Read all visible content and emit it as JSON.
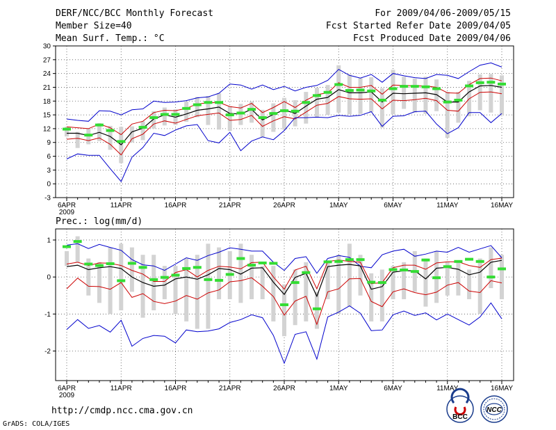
{
  "header": {
    "title": "DERF/NCC/BCC Monthly Forecast",
    "member_size": "Member Size=40",
    "variable": "Mean Surf. Temp.: °C",
    "period": "For 2009/04/06-2009/05/15",
    "started": "Fcst Started Refer Date 2009/04/05",
    "produced": "Fcst Produced Date 2009/04/06"
  },
  "footer": {
    "url": "http://cmdp.ncc.cma.gov.cn",
    "grads": "GrADS: COLA/IGES",
    "logo_bcc": "BCC",
    "logo_ncc": "NCC"
  },
  "colors": {
    "max_min": "#0000cc",
    "spread": "#cc0000",
    "mean": "#000000",
    "bars": "#d3d3d3",
    "obs": "#33dd33"
  },
  "chart_data": [
    {
      "type": "line",
      "title": "Mean Surf. Temp.: °C",
      "x_tick_labels": [
        "6APR",
        "11APR",
        "16APR",
        "21APR",
        "26APR",
        "1MAY",
        "6MAY",
        "11MAY",
        "16MAY"
      ],
      "x_tick_days": [
        0,
        5,
        10,
        15,
        20,
        25,
        30,
        35,
        40
      ],
      "year_label": "2009",
      "ylim": [
        -3,
        30
      ],
      "y_ticks": [
        -3,
        0,
        3,
        6,
        9,
        12,
        15,
        18,
        21,
        24,
        27,
        30
      ],
      "grid": true,
      "days": 40,
      "series": [
        {
          "name": "max",
          "values": [
            14.1,
            13.8,
            13.6,
            15.9,
            15.8,
            15.0,
            16.1,
            16.3,
            18.0,
            17.7,
            17.8,
            18.1,
            18.7,
            18.9,
            19.7,
            21.7,
            21.5,
            20.6,
            21.5,
            20.5,
            21.2,
            20.2,
            21.0,
            21.4,
            22.5,
            24.9,
            23.6,
            23.0,
            23.8,
            22.1,
            24.0,
            23.5,
            23.1,
            22.9,
            23.8,
            23.6,
            22.9,
            24.4,
            25.8,
            26.3,
            25.4
          ]
        },
        {
          "name": "upper",
          "values": [
            12.4,
            12.2,
            12.0,
            13.0,
            12.2,
            10.7,
            13.0,
            13.6,
            15.5,
            16.0,
            15.9,
            16.4,
            17.4,
            17.6,
            17.7,
            16.8,
            16.5,
            17.5,
            15.5,
            16.6,
            17.9,
            16.6,
            18.2,
            19.4,
            19.8,
            22.0,
            21.0,
            21.0,
            21.4,
            19.5,
            21.5,
            21.4,
            21.3,
            21.3,
            21.0,
            19.8,
            19.7,
            21.6,
            22.9,
            23.0,
            22.4
          ]
        },
        {
          "name": "mean",
          "values": [
            11.0,
            11.0,
            10.5,
            11.2,
            10.3,
            8.5,
            11.3,
            12.1,
            14.1,
            15.0,
            14.5,
            15.2,
            16.0,
            16.3,
            16.7,
            15.3,
            15.2,
            16.2,
            13.9,
            15.1,
            16.1,
            15.3,
            16.9,
            18.4,
            18.8,
            20.5,
            19.8,
            19.8,
            20.0,
            17.8,
            19.7,
            19.6,
            19.7,
            19.8,
            19.4,
            17.8,
            17.8,
            20.0,
            21.3,
            21.4,
            21.0
          ]
        },
        {
          "name": "lower",
          "values": [
            9.7,
            9.9,
            9.4,
            10.0,
            8.6,
            6.3,
            9.8,
            10.8,
            13.0,
            13.7,
            13.2,
            14.0,
            14.8,
            15.1,
            15.4,
            13.8,
            14.0,
            14.9,
            12.5,
            13.7,
            14.6,
            14.1,
            15.6,
            17.1,
            17.5,
            19.0,
            18.5,
            18.4,
            18.5,
            16.3,
            18.2,
            18.1,
            18.3,
            18.6,
            18.1,
            16.0,
            15.8,
            18.5,
            19.9,
            20.0,
            19.6
          ]
        },
        {
          "name": "min",
          "values": [
            5.4,
            6.5,
            6.2,
            6.2,
            3.3,
            0.5,
            5.8,
            7.9,
            11.0,
            10.5,
            11.7,
            12.6,
            12.9,
            9.4,
            8.9,
            11.2,
            7.2,
            9.3,
            10.2,
            9.6,
            11.6,
            14.4,
            14.4,
            14.5,
            14.4,
            14.9,
            14.7,
            14.9,
            15.7,
            12.5,
            14.7,
            14.8,
            15.7,
            15.8,
            13.0,
            10.9,
            12.2,
            15.5,
            15.5,
            13.3,
            15.3
          ]
        }
      ],
      "bars": {
        "low": [
          10.3,
          7.8,
          8.6,
          9.3,
          7.4,
          4.5,
          9.0,
          9.5,
          12.0,
          12.7,
          12.8,
          13.5,
          14.5,
          12.8,
          11.8,
          11.5,
          12.8,
          13.3,
          10.2,
          11.3,
          11.8,
          12.5,
          13.1,
          14.4,
          15.0,
          15.5,
          15.1,
          15.2,
          15.6,
          12.2,
          15.1,
          16.3,
          15.5,
          15.2,
          15.8,
          10.0,
          13.3,
          14.7,
          16.0,
          15.5,
          15.0
        ],
        "high": [
          12.4,
          11.3,
          12.0,
          13.2,
          12.6,
          12.4,
          12.5,
          13.6,
          15.8,
          16.6,
          16.2,
          17.9,
          18.9,
          19.1,
          19.7,
          16.9,
          17.4,
          17.9,
          16.1,
          17.5,
          18.7,
          18.2,
          20.0,
          20.9,
          21.5,
          25.8,
          23.8,
          23.0,
          23.2,
          20.8,
          24.8,
          23.3,
          22.9,
          23.3,
          22.7,
          20.0,
          20.0,
          22.4,
          23.8,
          23.9,
          23.6
        ]
      },
      "observed": [
        11.9,
        null,
        10.6,
        12.8,
        11.6,
        9.2,
        null,
        12.3,
        14.4,
        15.1,
        15.1,
        16.4,
        17.2,
        17.7,
        17.7,
        15.0,
        15.4,
        16.2,
        14.4,
        15.3,
        15.9,
        15.8,
        17.7,
        19.2,
        19.9,
        21.6,
        20.3,
        20.4,
        20.2,
        18.2,
        20.7,
        21.2,
        21.2,
        21.1,
        20.7,
        17.8,
        18.2,
        21.3,
        22.0,
        22.1,
        21.7
      ]
    },
    {
      "type": "line",
      "title": "Prec.: log(mm/d)",
      "x_tick_labels": [
        "6APR",
        "11APR",
        "16APR",
        "21APR",
        "26APR",
        "1MAY",
        "6MAY",
        "11MAY",
        "16MAY"
      ],
      "x_tick_days": [
        0,
        5,
        10,
        15,
        20,
        25,
        30,
        35,
        40
      ],
      "year_label": "2009",
      "ylim": [
        -2.8,
        1.3
      ],
      "y_ticks": [
        -2,
        -1,
        0,
        1
      ],
      "grid": true,
      "days": 40,
      "series": [
        {
          "name": "max",
          "values": [
            0.86,
            0.9,
            0.77,
            0.88,
            0.8,
            0.72,
            0.47,
            0.33,
            0.3,
            0.18,
            0.35,
            0.52,
            0.45,
            0.58,
            0.67,
            0.79,
            0.75,
            0.7,
            0.7,
            0.4,
            0.18,
            0.5,
            0.55,
            0.1,
            0.5,
            0.58,
            0.53,
            0.29,
            0.25,
            0.6,
            0.7,
            0.75,
            0.56,
            0.62,
            0.7,
            0.67,
            0.8,
            0.67,
            0.76,
            0.85,
            0.52
          ]
        },
        {
          "name": "upper",
          "values": [
            0.35,
            0.4,
            0.31,
            0.38,
            0.37,
            0.31,
            0.18,
            0.08,
            -0.12,
            -0.12,
            0.12,
            0.2,
            0.0,
            0.18,
            0.29,
            0.27,
            0.22,
            0.39,
            0.4,
            0.0,
            -0.33,
            0.19,
            0.29,
            -0.32,
            0.42,
            0.46,
            0.42,
            0.4,
            -0.18,
            -0.15,
            0.25,
            0.32,
            0.32,
            0.21,
            0.38,
            0.41,
            0.41,
            0.31,
            0.26,
            0.47,
            0.51
          ]
        },
        {
          "name": "mean",
          "values": [
            0.28,
            0.32,
            0.2,
            0.25,
            0.28,
            0.23,
            0.0,
            -0.15,
            -0.25,
            -0.22,
            -0.05,
            0.0,
            -0.06,
            0.06,
            0.23,
            0.2,
            0.08,
            0.24,
            0.25,
            -0.14,
            -0.47,
            -0.01,
            0.1,
            -0.52,
            0.28,
            0.32,
            0.34,
            0.3,
            -0.33,
            -0.26,
            0.13,
            0.17,
            0.17,
            -0.05,
            0.24,
            0.26,
            0.21,
            0.06,
            0.13,
            0.4,
            0.45
          ]
        },
        {
          "name": "lower",
          "values": [
            -0.32,
            -0.03,
            -0.25,
            -0.26,
            -0.33,
            -0.15,
            -0.55,
            -0.45,
            -0.66,
            -0.72,
            -0.65,
            -0.5,
            -0.6,
            -0.43,
            -0.35,
            -0.13,
            -0.1,
            -0.02,
            -0.25,
            -0.53,
            -1.03,
            -0.65,
            -0.52,
            -1.28,
            -0.4,
            -0.32,
            -0.05,
            -0.04,
            -0.66,
            -0.8,
            -0.4,
            -0.32,
            -0.42,
            -0.48,
            -0.41,
            -0.22,
            -0.15,
            -0.38,
            -0.42,
            -0.1,
            -0.16
          ]
        },
        {
          "name": "min",
          "values": [
            -1.42,
            -1.15,
            -1.39,
            -1.31,
            -1.49,
            -1.17,
            -1.87,
            -1.66,
            -1.58,
            -1.6,
            -1.78,
            -1.43,
            -1.48,
            -1.46,
            -1.4,
            -1.23,
            -1.15,
            -1.02,
            -1.1,
            -1.58,
            -2.33,
            -1.55,
            -1.48,
            -2.22,
            -1.08,
            -0.95,
            -0.78,
            -0.98,
            -1.45,
            -1.43,
            -1.02,
            -0.92,
            -1.04,
            -0.97,
            -1.16,
            -1.0,
            -1.15,
            -1.3,
            -1.08,
            -0.7,
            -1.13
          ]
        }
      ],
      "bars": {
        "low": [
          0.3,
          0.4,
          -0.5,
          -0.7,
          -1.0,
          -0.9,
          -0.4,
          -1.1,
          -0.9,
          -0.6,
          -1.0,
          -1.2,
          -1.4,
          -1.4,
          -0.6,
          -0.6,
          -0.7,
          -0.6,
          -0.6,
          -1.2,
          -1.6,
          -1.3,
          -1.2,
          -1.4,
          -0.6,
          -1.0,
          -0.8,
          -0.5,
          -1.2,
          -1.2,
          -0.6,
          -0.6,
          -0.4,
          -0.8,
          -0.7,
          -0.5,
          -0.5,
          -0.6,
          -1.0,
          -0.3,
          -0.6
        ],
        "high": [
          0.7,
          1.1,
          0.5,
          0.4,
          0.8,
          0.9,
          0.8,
          0.6,
          0.6,
          0.3,
          0.3,
          0.5,
          0.6,
          0.9,
          0.8,
          0.7,
          0.9,
          0.6,
          0.3,
          0.3,
          -0.2,
          0.2,
          0.4,
          -0.4,
          0.4,
          0.6,
          0.9,
          0.6,
          0.1,
          0.2,
          0.3,
          0.4,
          0.7,
          0.5,
          0.7,
          0.4,
          0.4,
          0.2,
          0.5,
          0.8,
          0.6
        ]
      },
      "observed": [
        0.82,
        0.96,
        0.35,
        0.31,
        0.36,
        -0.1,
        0.37,
        0.26,
        -0.07,
        -0.01,
        0.05,
        0.23,
        0.26,
        -0.07,
        -0.09,
        0.07,
        0.5,
        0.32,
        0.38,
        0.37,
        -0.75,
        -0.15,
        0.12,
        -0.86,
        0.41,
        0.42,
        0.47,
        0.47,
        -0.14,
        -0.15,
        0.2,
        0.19,
        0.15,
        0.46,
        -0.02,
        0.28,
        0.42,
        0.48,
        0.42,
        0.0,
        0.22
      ]
    }
  ]
}
